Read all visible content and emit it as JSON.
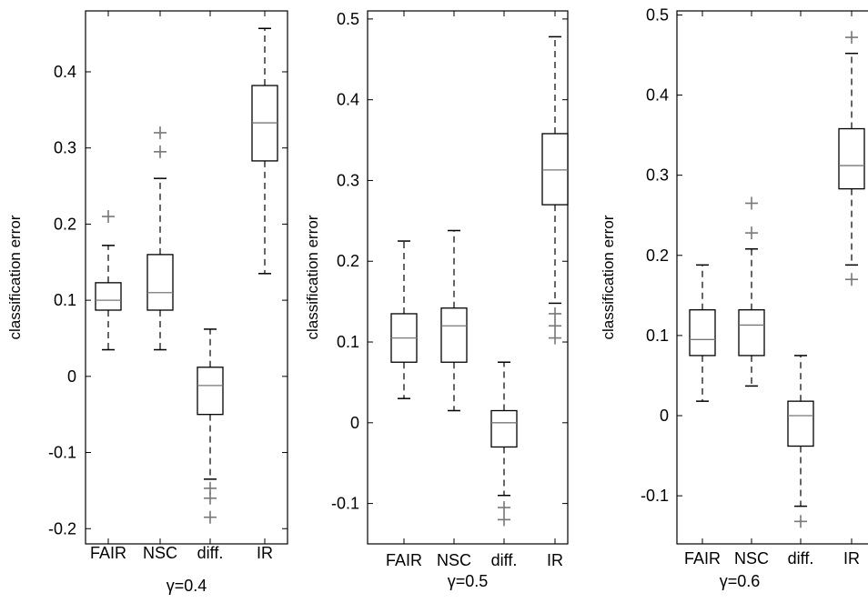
{
  "chart_data": [
    {
      "type": "box",
      "title": "",
      "xlabel": "γ=0.4",
      "ylabel": "classification error",
      "ylim": [
        -0.22,
        0.48
      ],
      "yticks": [
        -0.2,
        -0.1,
        0,
        0.1,
        0.2,
        0.3,
        0.4
      ],
      "ytick_labels": [
        "-0.2",
        "-0.1",
        "0",
        "0.1",
        "0.2",
        "0.3",
        "0.4"
      ],
      "categories": [
        "FAIR",
        "NSC",
        "diff.",
        "IR"
      ],
      "boxes": [
        {
          "category": "FAIR",
          "whisker_low": 0.035,
          "q1": 0.087,
          "median": 0.1,
          "q3": 0.123,
          "whisker_high": 0.172,
          "outliers": [
            0.21
          ]
        },
        {
          "category": "NSC",
          "whisker_low": 0.035,
          "q1": 0.087,
          "median": 0.11,
          "q3": 0.16,
          "whisker_high": 0.26,
          "outliers": [
            0.295,
            0.32
          ]
        },
        {
          "category": "diff.",
          "whisker_low": -0.135,
          "q1": -0.05,
          "median": -0.012,
          "q3": 0.012,
          "whisker_high": 0.062,
          "outliers": [
            -0.147,
            -0.16,
            -0.185
          ]
        },
        {
          "category": "IR",
          "whisker_low": 0.135,
          "q1": 0.283,
          "median": 0.333,
          "q3": 0.382,
          "whisker_high": 0.457,
          "outliers": []
        }
      ]
    },
    {
      "type": "box",
      "title": "",
      "xlabel": "γ=0.5",
      "ylabel": "classification error",
      "ylim": [
        -0.15,
        0.51
      ],
      "yticks": [
        -0.1,
        0,
        0.1,
        0.2,
        0.3,
        0.4,
        0.5
      ],
      "ytick_labels": [
        "-0.1",
        "0",
        "0.1",
        "0.2",
        "0.3",
        "0.4",
        "0.5"
      ],
      "categories": [
        "FAIR",
        "NSC",
        "diff.",
        "IR"
      ],
      "boxes": [
        {
          "category": "FAIR",
          "whisker_low": 0.03,
          "q1": 0.075,
          "median": 0.105,
          "q3": 0.135,
          "whisker_high": 0.225,
          "outliers": []
        },
        {
          "category": "NSC",
          "whisker_low": 0.015,
          "q1": 0.075,
          "median": 0.12,
          "q3": 0.142,
          "whisker_high": 0.238,
          "outliers": []
        },
        {
          "category": "diff.",
          "whisker_low": -0.09,
          "q1": -0.03,
          "median": 0.0,
          "q3": 0.015,
          "whisker_high": 0.075,
          "outliers": [
            -0.105,
            -0.12
          ]
        },
        {
          "category": "IR",
          "whisker_low": 0.148,
          "q1": 0.27,
          "median": 0.313,
          "q3": 0.358,
          "whisker_high": 0.478,
          "outliers": [
            0.135,
            0.12,
            0.105
          ]
        }
      ]
    },
    {
      "type": "box",
      "title": "",
      "xlabel": "γ=0.6",
      "ylabel": "classification error",
      "ylim": [
        -0.16,
        0.505
      ],
      "yticks": [
        -0.1,
        0,
        0.1,
        0.2,
        0.3,
        0.4,
        0.5
      ],
      "ytick_labels": [
        "-0.1",
        "0",
        "0.1",
        "0.2",
        "0.3",
        "0.4",
        "0.5"
      ],
      "categories": [
        "FAIR",
        "NSC",
        "diff.",
        "IR"
      ],
      "boxes": [
        {
          "category": "FAIR",
          "whisker_low": 0.018,
          "q1": 0.075,
          "median": 0.095,
          "q3": 0.132,
          "whisker_high": 0.188,
          "outliers": []
        },
        {
          "category": "NSC",
          "whisker_low": 0.037,
          "q1": 0.075,
          "median": 0.113,
          "q3": 0.132,
          "whisker_high": 0.208,
          "outliers": [
            0.228,
            0.265
          ]
        },
        {
          "category": "diff.",
          "whisker_low": -0.113,
          "q1": -0.038,
          "median": 0.0,
          "q3": 0.018,
          "whisker_high": 0.075,
          "outliers": [
            -0.132
          ]
        },
        {
          "category": "IR",
          "whisker_low": 0.188,
          "q1": 0.283,
          "median": 0.312,
          "q3": 0.358,
          "whisker_high": 0.452,
          "outliers": [
            0.17,
            0.472
          ]
        }
      ]
    }
  ]
}
